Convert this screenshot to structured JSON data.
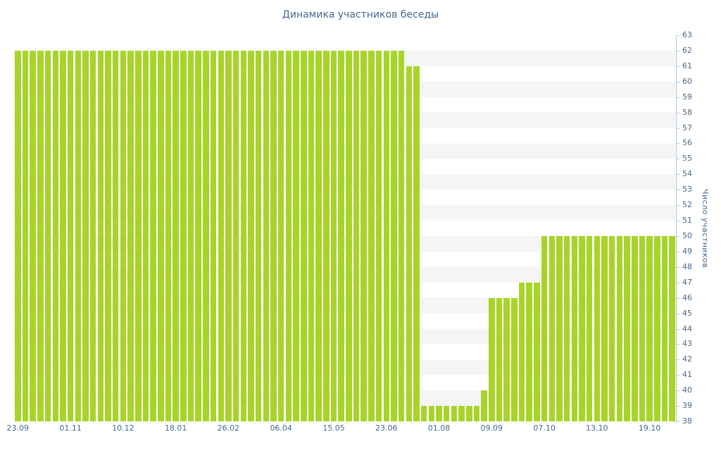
{
  "page": {
    "title": "Динамика участников беседы"
  },
  "chart_data": {
    "type": "bar",
    "title": "Динамика участников беседы",
    "xlabel": "",
    "ylabel": "Число участников",
    "ylim": [
      38,
      63
    ],
    "y_tick_step": 1,
    "grid": "horizontal-stripes",
    "legend": "none",
    "bar_color": "#a8d429",
    "text_color": "#45688e",
    "axis_color": "#b7c6d4",
    "stripe_colors": [
      "#ffffff",
      "#f5f5f5"
    ],
    "x_tick_labels": [
      "23.09",
      "01.11",
      "10.12",
      "18.01",
      "26.02",
      "06.04",
      "15.05",
      "23.06",
      "01.08",
      "09.09",
      "07.10",
      "13.10",
      "19.10"
    ],
    "x_tick_step": 7,
    "values": [
      62,
      62,
      62,
      62,
      62,
      62,
      62,
      62,
      62,
      62,
      62,
      62,
      62,
      62,
      62,
      62,
      62,
      62,
      62,
      62,
      62,
      62,
      62,
      62,
      62,
      62,
      62,
      62,
      62,
      62,
      62,
      62,
      62,
      62,
      62,
      62,
      62,
      62,
      62,
      62,
      62,
      62,
      62,
      62,
      62,
      62,
      62,
      62,
      62,
      62,
      62,
      62,
      61,
      61,
      39,
      39,
      39,
      39,
      39,
      39,
      39,
      39,
      40,
      46,
      46,
      46,
      46,
      47,
      47,
      47,
      50,
      50,
      50,
      50,
      50,
      50,
      50,
      50,
      50,
      50,
      50,
      50,
      50,
      50,
      50,
      50,
      50,
      50
    ]
  }
}
